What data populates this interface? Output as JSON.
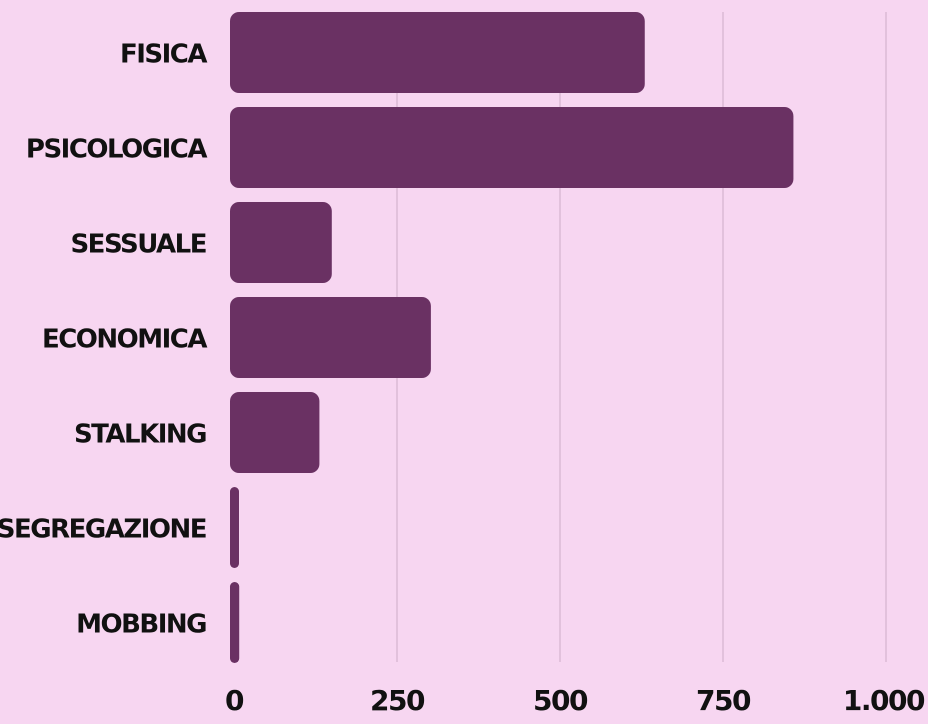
{
  "chart_data": {
    "type": "bar",
    "orientation": "horizontal",
    "categories": [
      "FISICA",
      "PSICOLOGICA",
      "SESSUALE",
      "ECONOMICA",
      "STALKING",
      "SEGREGAZIONE",
      "MOBBING"
    ],
    "values": [
      630,
      858,
      150,
      302,
      131,
      5,
      8
    ],
    "xlim": [
      0,
      1000
    ],
    "xticks": [
      0,
      250,
      500,
      750,
      1000
    ],
    "xtick_labels": [
      "0",
      "250",
      "500",
      "750",
      "1.000"
    ],
    "grid": "vertical",
    "title": "",
    "xlabel": "",
    "ylabel": "",
    "colors": {
      "background": "#f7d6f1",
      "bar": "#6a3163",
      "grid": "#d4b3cf",
      "text": "#111111"
    }
  }
}
